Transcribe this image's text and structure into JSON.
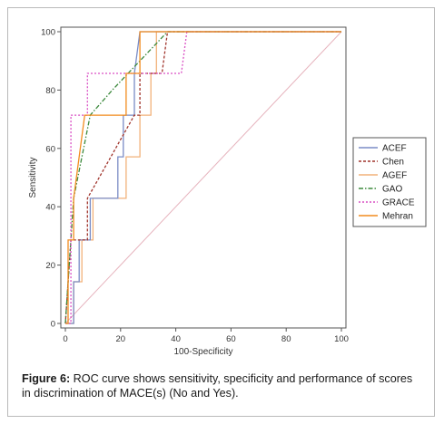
{
  "chart_data": {
    "type": "line",
    "title": "",
    "xlabel": "100-Specificity",
    "ylabel": "Sensitivity",
    "xlim": [
      0,
      100
    ],
    "ylim": [
      0,
      100
    ],
    "x_ticks": [
      0,
      20,
      40,
      60,
      80,
      100
    ],
    "y_ticks": [
      0,
      20,
      40,
      60,
      80,
      100
    ],
    "grid": false,
    "legend_position": "right",
    "series": [
      {
        "name": "ACEF",
        "color": "#7a8cc6",
        "dash": "solid",
        "x": [
          0,
          3,
          3,
          5,
          5,
          9,
          9,
          19,
          19,
          21,
          21,
          25,
          25,
          27,
          100
        ],
        "y": [
          0,
          0,
          14.3,
          14.3,
          28.6,
          28.6,
          42.9,
          42.9,
          57.1,
          57.1,
          71.4,
          71.4,
          85.7,
          100,
          100
        ]
      },
      {
        "name": "Chen",
        "color": "#a0332b",
        "dash": "3,2",
        "x": [
          0,
          2,
          8,
          8,
          25,
          27,
          27,
          35,
          37,
          100
        ],
        "y": [
          0,
          28.6,
          28.6,
          42.9,
          71.4,
          71.4,
          85.7,
          85.7,
          100,
          100
        ]
      },
      {
        "name": "AGEF",
        "color": "#f2b27a",
        "dash": "solid",
        "x": [
          0,
          3,
          3,
          6,
          6,
          10,
          10,
          22,
          22,
          27,
          27,
          31,
          31,
          33,
          33,
          45,
          100
        ],
        "y": [
          0,
          0,
          14.3,
          14.3,
          28.6,
          28.6,
          42.9,
          42.9,
          57.1,
          57.1,
          71.4,
          71.4,
          85.7,
          85.7,
          100,
          100,
          100
        ]
      },
      {
        "name": "GAO",
        "color": "#3d8a3d",
        "dash": "5,2,1.5,2",
        "x": [
          0,
          1,
          3,
          9,
          17,
          37,
          100
        ],
        "y": [
          0,
          14.3,
          42.9,
          71.4,
          80,
          100,
          100
        ]
      },
      {
        "name": "GRACE",
        "color": "#d94fc4",
        "dash": "2,2",
        "x": [
          0,
          2,
          2,
          8,
          8,
          42,
          44,
          100
        ],
        "y": [
          0,
          0,
          71.4,
          71.4,
          85.7,
          85.7,
          100,
          100
        ]
      },
      {
        "name": "Mehran",
        "color": "#f28c1f",
        "dash": "solid",
        "x": [
          0,
          1,
          1,
          3,
          3,
          7,
          22,
          22,
          27,
          27,
          100
        ],
        "y": [
          0,
          0,
          28.6,
          28.6,
          42.9,
          71.4,
          71.4,
          85.7,
          85.7,
          100,
          100
        ]
      },
      {
        "name": "",
        "color": "#e6b3bd",
        "dash": "solid",
        "x": [
          0,
          100
        ],
        "y": [
          0,
          100
        ]
      }
    ]
  },
  "caption": {
    "label": "Figure 6:",
    "text": " ROC curve shows sensitivity, specificity and performance of scores in discrimination of MACE(s) (No and Yes)."
  }
}
